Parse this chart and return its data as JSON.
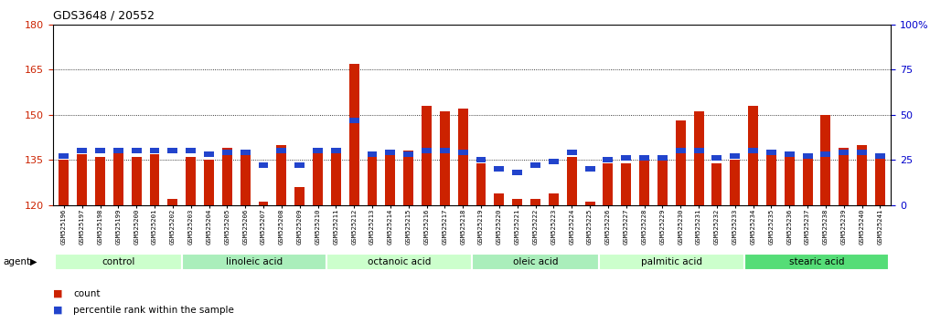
{
  "title": "GDS3648 / 20552",
  "samples": [
    "GSM525196",
    "GSM525197",
    "GSM525198",
    "GSM525199",
    "GSM525200",
    "GSM525201",
    "GSM525202",
    "GSM525203",
    "GSM525204",
    "GSM525205",
    "GSM525206",
    "GSM525207",
    "GSM525208",
    "GSM525209",
    "GSM525210",
    "GSM525211",
    "GSM525212",
    "GSM525213",
    "GSM525214",
    "GSM525215",
    "GSM525216",
    "GSM525217",
    "GSM525218",
    "GSM525219",
    "GSM525220",
    "GSM525221",
    "GSM525222",
    "GSM525223",
    "GSM525224",
    "GSM525225",
    "GSM525226",
    "GSM525227",
    "GSM525228",
    "GSM525229",
    "GSM525230",
    "GSM525231",
    "GSM525232",
    "GSM525233",
    "GSM525234",
    "GSM525235",
    "GSM525236",
    "GSM525237",
    "GSM525238",
    "GSM525239",
    "GSM525240",
    "GSM525241"
  ],
  "counts": [
    135,
    137,
    136,
    139,
    136,
    137,
    122,
    136,
    135,
    139,
    138,
    121,
    140,
    126,
    139,
    139,
    167,
    136,
    138,
    138,
    153,
    151,
    152,
    134,
    124,
    122,
    122,
    124,
    136,
    121,
    134,
    134,
    136,
    136,
    148,
    151,
    134,
    135,
    153,
    137,
    136,
    136,
    150,
    139,
    140,
    137
  ],
  "percentiles": [
    27,
    30,
    30,
    30,
    30,
    30,
    30,
    30,
    28,
    29,
    29,
    22,
    30,
    22,
    30,
    30,
    47,
    28,
    29,
    28,
    30,
    30,
    29,
    25,
    20,
    18,
    22,
    24,
    29,
    20,
    25,
    26,
    26,
    26,
    30,
    30,
    26,
    27,
    30,
    29,
    28,
    27,
    28,
    29,
    29,
    27
  ],
  "groups": [
    {
      "label": "control",
      "start": 0,
      "end": 7,
      "color": "#ccffcc"
    },
    {
      "label": "linoleic acid",
      "start": 7,
      "end": 15,
      "color": "#aaeebb"
    },
    {
      "label": "octanoic acid",
      "start": 15,
      "end": 23,
      "color": "#ccffcc"
    },
    {
      "label": "oleic acid",
      "start": 23,
      "end": 30,
      "color": "#aaeebb"
    },
    {
      "label": "palmitic acid",
      "start": 30,
      "end": 38,
      "color": "#ccffcc"
    },
    {
      "label": "stearic acid",
      "start": 38,
      "end": 46,
      "color": "#55dd77"
    }
  ],
  "bar_color": "#cc2200",
  "percentile_color": "#2244cc",
  "ymin": 120,
  "ymax": 180,
  "yticks": [
    120,
    135,
    150,
    165,
    180
  ],
  "ytick_dotted": [
    135,
    150,
    165
  ],
  "right_ytick_vals": [
    0,
    25,
    50,
    75,
    100
  ],
  "right_ylabels": [
    "0",
    "25",
    "50",
    "75",
    "100%"
  ],
  "tick_bg_color": "#dddddd",
  "background_color": "#ffffff",
  "agent_label": "agent",
  "legend_items": [
    {
      "label": "count",
      "color": "#cc2200"
    },
    {
      "label": "percentile rank within the sample",
      "color": "#2244cc"
    }
  ]
}
